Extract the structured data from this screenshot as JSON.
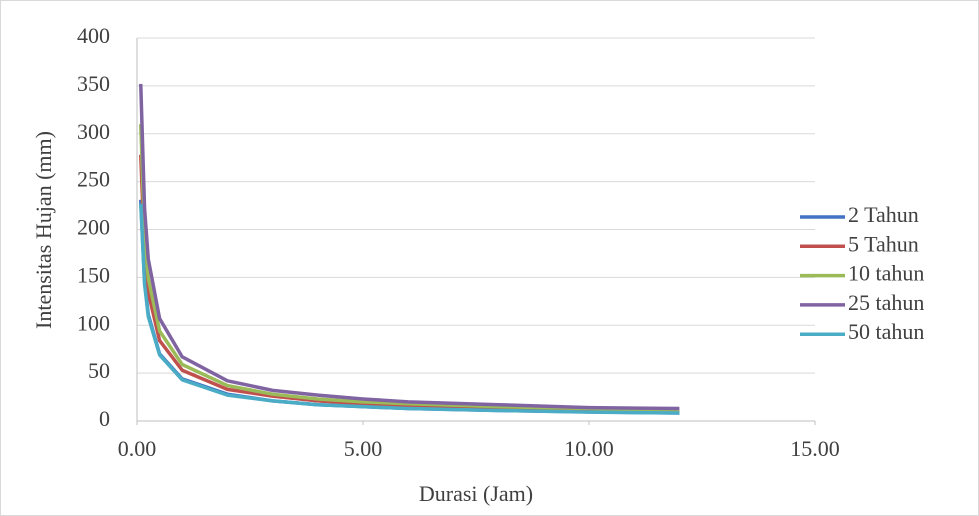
{
  "chart_data": {
    "type": "line",
    "x": [
      0.083,
      0.167,
      0.25,
      0.5,
      1,
      2,
      3,
      4,
      5,
      6,
      8,
      10,
      12
    ],
    "series": [
      {
        "name": "2 Tahun",
        "color": "#4472c4",
        "values": [
          231,
          146,
          111,
          70,
          44,
          28,
          21,
          17,
          15,
          13,
          11,
          9.5,
          8.4
        ]
      },
      {
        "name": "5 Tahun",
        "color": "#c0504d",
        "values": [
          278,
          175,
          134,
          84,
          53,
          33,
          26,
          21,
          18,
          16,
          13,
          11,
          10
        ]
      },
      {
        "name": "10 tahun",
        "color": "#9bbb59",
        "values": [
          310,
          195,
          149,
          94,
          59,
          37,
          28,
          23,
          20,
          18,
          15,
          13,
          11
        ]
      },
      {
        "name": "25 tahun",
        "color": "#8064a2",
        "values": [
          352,
          222,
          169,
          107,
          67,
          42,
          32,
          27,
          23,
          20,
          17,
          14,
          13
        ]
      },
      {
        "name": "50 tahun",
        "color": "#4bacc6",
        "values": [
          227,
          143,
          109,
          69,
          43,
          27,
          21,
          17,
          15,
          13,
          11,
          9.3,
          8.3
        ]
      }
    ],
    "xlabel": "Durasi (Jam)",
    "ylabel": "Intensitas Hujan (mm)",
    "xlim": [
      0,
      15
    ],
    "xticks": [
      {
        "value": 0,
        "label": "0.00"
      },
      {
        "value": 5,
        "label": "5.00"
      },
      {
        "value": 10,
        "label": "10.00"
      },
      {
        "value": 15,
        "label": "15.00"
      }
    ],
    "ylim": [
      0,
      400
    ],
    "yticks": [
      0,
      50,
      100,
      150,
      200,
      250,
      300,
      350,
      400
    ],
    "grid": true,
    "legend": "right"
  }
}
